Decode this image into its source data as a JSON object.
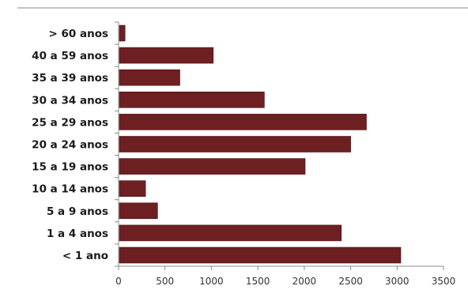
{
  "chart_data": {
    "type": "bar",
    "orientation": "horizontal",
    "title": "",
    "xlabel": "",
    "ylabel": "",
    "categories": [
      "> 60 anos",
      "40 a 59 anos",
      "35 a 39 anos",
      "30 a 34 anos",
      "25 a 29 anos",
      "20 a 24 anos",
      "15 a 19 anos",
      "10 a 14 anos",
      "5 a 9 anos",
      "1 a 4 anos",
      "< 1 ano"
    ],
    "values": [
      70,
      1020,
      660,
      1570,
      2670,
      2500,
      2010,
      290,
      420,
      2400,
      3040
    ],
    "xlim": [
      0,
      3500
    ],
    "xticks": [
      "0",
      "500",
      "1000",
      "1500",
      "2000",
      "2500",
      "3000",
      "3500"
    ],
    "xtick_values": [
      0,
      500,
      1000,
      1500,
      2000,
      2500,
      3000,
      3500
    ],
    "grid": false,
    "legend": "none",
    "bar_color": "#6e1f22",
    "axis_color": "#8c8c8c"
  }
}
